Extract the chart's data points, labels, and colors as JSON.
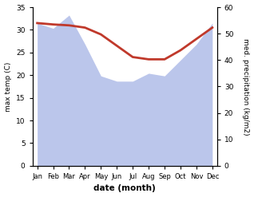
{
  "months": [
    "Jan",
    "Feb",
    "Mar",
    "Apr",
    "May",
    "Jun",
    "Jul",
    "Aug",
    "Sep",
    "Oct",
    "Nov",
    "Dec"
  ],
  "month_indices": [
    0,
    1,
    2,
    3,
    4,
    5,
    6,
    7,
    8,
    9,
    10,
    11
  ],
  "precipitation": [
    54,
    52,
    57,
    46,
    34,
    32,
    32,
    35,
    34,
    40,
    46,
    54
  ],
  "max_temp": [
    31.5,
    31.2,
    31.0,
    30.5,
    29.0,
    26.5,
    24.0,
    23.5,
    23.5,
    25.5,
    28.0,
    30.5
  ],
  "temp_ylim": [
    0,
    35
  ],
  "precip_ylim": [
    0,
    60
  ],
  "temp_yticks": [
    0,
    5,
    10,
    15,
    20,
    25,
    30,
    35
  ],
  "precip_yticks": [
    0,
    10,
    20,
    30,
    40,
    50,
    60
  ],
  "xlabel": "date (month)",
  "ylabel_left": "max temp (C)",
  "ylabel_right": "med. precipitation (kg/m2)",
  "fill_color": "#b0bce8",
  "line_color": "#c0392b",
  "line_width": 2.0,
  "bg_color": "#ffffff"
}
